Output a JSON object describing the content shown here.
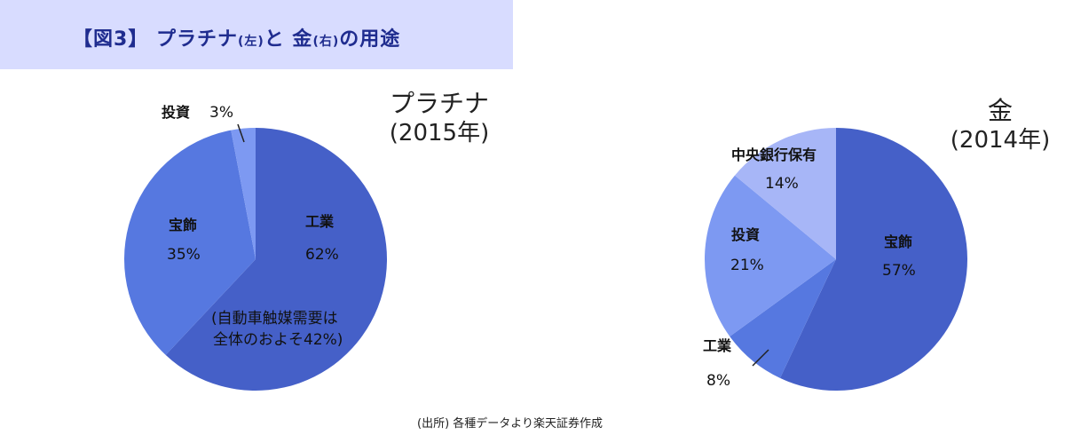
{
  "header": {
    "title_prefix": "【図3】 プラチナ",
    "title_left_note": "(左)",
    "title_mid": "と 金",
    "title_right_note": "(右)",
    "title_suffix": "の用途"
  },
  "source_note": "(出所) 各種データより楽天証券作成",
  "colors": {
    "band": "#d8dcff",
    "dark_blue": "#4560c8",
    "mid_blue": "#5678e0",
    "light_blue": "#7d99f2",
    "pale_blue": "#a7b6f7"
  },
  "chart_data": [
    {
      "type": "pie",
      "title": "プラチナ",
      "subtitle": "(2015年)",
      "slices": [
        {
          "label": "工業",
          "value": 62,
          "value_label": "62%",
          "color": "#4560c8"
        },
        {
          "label": "宝飾",
          "value": 35,
          "value_label": "35%",
          "color": "#5678e0"
        },
        {
          "label": "投資",
          "value": 3,
          "value_label": "3%",
          "color": "#7d99f2"
        }
      ],
      "annotation": {
        "line1": "(自動車触媒需要は",
        "line2": "全体のおよそ42%)"
      }
    },
    {
      "type": "pie",
      "title": "金",
      "subtitle": "(2014年)",
      "slices": [
        {
          "label": "宝飾",
          "value": 57,
          "value_label": "57%",
          "color": "#4560c8"
        },
        {
          "label": "工業",
          "value": 8,
          "value_label": "8%",
          "color": "#5678e0"
        },
        {
          "label": "投資",
          "value": 21,
          "value_label": "21%",
          "color": "#7d99f2"
        },
        {
          "label": "中央銀行保有",
          "value": 14,
          "value_label": "14%",
          "color": "#a7b6f7"
        }
      ]
    }
  ]
}
